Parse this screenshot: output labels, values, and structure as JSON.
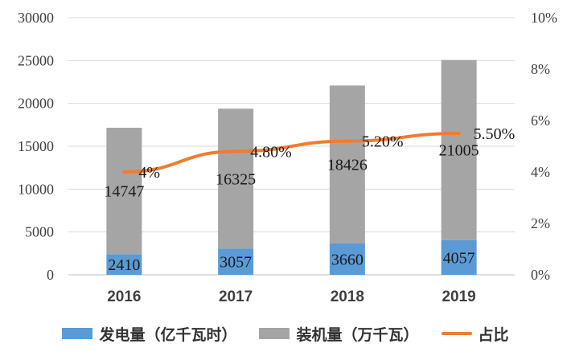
{
  "chart_data": {
    "type": "bar",
    "categories": [
      "2016",
      "2017",
      "2018",
      "2019"
    ],
    "series": [
      {
        "name": "发电量（亿千瓦时）",
        "kind": "bar",
        "axis": "left",
        "values": [
          2410,
          3057,
          3660,
          4057
        ],
        "labels": [
          "2410",
          "3057",
          "3660",
          "4057"
        ],
        "color": "#5B9BD5"
      },
      {
        "name": "装机量（万千瓦）",
        "kind": "bar",
        "axis": "left",
        "values": [
          14747,
          16325,
          18426,
          21005
        ],
        "labels": [
          "14747",
          "16325",
          "18426",
          "21005"
        ],
        "color": "#A5A5A5"
      },
      {
        "name": "占比",
        "kind": "line",
        "axis": "right",
        "values": [
          4.0,
          4.8,
          5.2,
          5.5
        ],
        "labels": [
          "4%",
          "4.80%",
          "5.20%",
          "5.50%"
        ],
        "color": "#ED7D31"
      }
    ],
    "stacked": true,
    "y_left": {
      "min": 0,
      "max": 30000,
      "step": 5000,
      "ticks": [
        "0",
        "5000",
        "10000",
        "15000",
        "20000",
        "25000",
        "30000"
      ]
    },
    "y_right": {
      "min": 0,
      "max": 10,
      "step": 2,
      "ticks": [
        "0%",
        "2%",
        "4%",
        "6%",
        "8%",
        "10%"
      ]
    },
    "grid": true,
    "legend_position": "bottom"
  }
}
